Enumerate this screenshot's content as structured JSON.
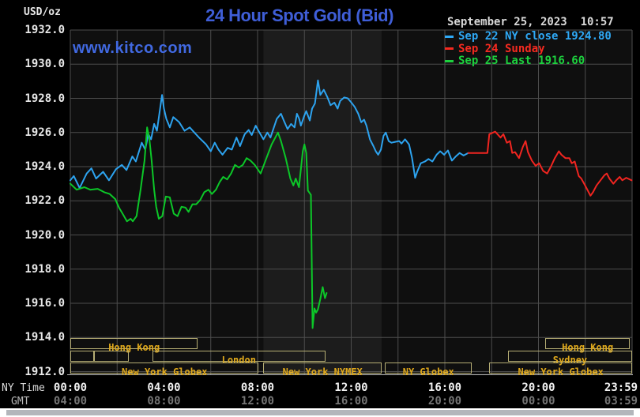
{
  "header": {
    "units": "USD/oz",
    "title": "24 Hour Spot Gold (Bid)",
    "date_time": "September 25, 2023  10:57",
    "watermark": "www.kitco.com"
  },
  "legend": {
    "items": [
      {
        "label": "Sep 22 NY close 1924.80",
        "color": "#2fa9f6"
      },
      {
        "label": "Sep 24 Sunday",
        "color": "#f52a20"
      },
      {
        "label": "Sep 25 Last 1916.60",
        "color": "#1dd13e"
      }
    ]
  },
  "colors": {
    "title_blue": "#3f5ed7",
    "watermark_blue": "#4169e1",
    "grid": "#4d4d4d",
    "plot_bg": "#0f0f0f",
    "nymex_band": "#1c1c1c",
    "session_border": "#b6ae74",
    "session_text": "#e0a91c",
    "axis_bottom_line": "#b9b9b9"
  },
  "y_axis": {
    "labels": [
      "1932.0",
      "1930.0",
      "1928.0",
      "1926.0",
      "1924.0",
      "1922.0",
      "1920.0",
      "1918.0",
      "1916.0",
      "1914.0",
      "1912.0"
    ]
  },
  "x_axis": {
    "ny_caption": "NY Time",
    "gmt_caption": "GMT",
    "tick_hours": [
      0,
      4,
      8,
      12,
      16,
      20,
      24
    ],
    "ny_labels": [
      "00:00",
      "04:00",
      "08:00",
      "12:00",
      "16:00",
      "20:00",
      "23:59"
    ],
    "gmt_labels": [
      "04:00",
      "08:00",
      "12:00",
      "16:00",
      "20:00",
      "00:00",
      "03:59"
    ]
  },
  "sessions": {
    "rows": [
      {
        "boxes": [
          {
            "label": "Hong Kong",
            "start": 0,
            "end": 5.45
          },
          {
            "label": "Hong Kong",
            "start": 20.3,
            "end": 23.9
          }
        ]
      },
      {
        "boxes": [
          {
            "label": "",
            "start": 0,
            "end": 1.0
          },
          {
            "label": "",
            "start": 1.0,
            "end": 2.5
          },
          {
            "label": "London",
            "start": 3.5,
            "end": 10.9
          },
          {
            "label": "Sydney",
            "start": 18.7,
            "end": 24
          }
        ]
      },
      {
        "boxes": [
          {
            "label": "New York Globex",
            "start": 0,
            "end": 8.05
          },
          {
            "label": "New York NYMEX",
            "start": 8.25,
            "end": 13.3
          },
          {
            "label": "NY Globex",
            "start": 13.45,
            "end": 17.15
          },
          {
            "label": "New York Globex",
            "start": 17.9,
            "end": 24
          }
        ]
      }
    ]
  },
  "chart_data": {
    "type": "line",
    "title": "24 Hour Spot Gold (Bid)",
    "xlabel": "NY Time (hours)",
    "ylabel": "USD/oz",
    "xlim": [
      0,
      24
    ],
    "ylim": [
      1912,
      1932
    ],
    "y_tick_step": 2,
    "grid": true,
    "legend_position": "top-right",
    "highlight_band": {
      "start": 8.25,
      "end": 13.3
    },
    "series": [
      {
        "name": "Sep 22 NY close 1924.80",
        "color": "#2da3ef",
        "points": [
          [
            0,
            1923.2
          ],
          [
            0.15,
            1923.45
          ],
          [
            0.4,
            1922.75
          ],
          [
            0.7,
            1923.6
          ],
          [
            0.9,
            1923.9
          ],
          [
            1.1,
            1923.3
          ],
          [
            1.4,
            1923.7
          ],
          [
            1.65,
            1923.2
          ],
          [
            1.95,
            1923.85
          ],
          [
            2.2,
            1924.1
          ],
          [
            2.4,
            1923.8
          ],
          [
            2.65,
            1924.6
          ],
          [
            2.8,
            1924.3
          ],
          [
            3.05,
            1925.4
          ],
          [
            3.2,
            1925.0
          ],
          [
            3.33,
            1925.9
          ],
          [
            3.45,
            1925.6
          ],
          [
            3.58,
            1926.5
          ],
          [
            3.7,
            1926.1
          ],
          [
            3.92,
            1928.2
          ],
          [
            4.0,
            1927.4
          ],
          [
            4.1,
            1926.8
          ],
          [
            4.25,
            1926.3
          ],
          [
            4.4,
            1926.9
          ],
          [
            4.65,
            1926.6
          ],
          [
            4.88,
            1926.1
          ],
          [
            5.1,
            1926.3
          ],
          [
            5.3,
            1926.0
          ],
          [
            5.5,
            1925.7
          ],
          [
            5.8,
            1925.3
          ],
          [
            6.0,
            1924.9
          ],
          [
            6.17,
            1925.4
          ],
          [
            6.33,
            1925.0
          ],
          [
            6.5,
            1924.7
          ],
          [
            6.72,
            1925.1
          ],
          [
            6.9,
            1925.0
          ],
          [
            7.1,
            1925.7
          ],
          [
            7.25,
            1925.2
          ],
          [
            7.45,
            1925.9
          ],
          [
            7.62,
            1926.15
          ],
          [
            7.75,
            1925.85
          ],
          [
            7.92,
            1926.4
          ],
          [
            8.08,
            1926.0
          ],
          [
            8.25,
            1925.6
          ],
          [
            8.42,
            1926.0
          ],
          [
            8.55,
            1925.7
          ],
          [
            8.82,
            1926.8
          ],
          [
            9.0,
            1927.1
          ],
          [
            9.12,
            1926.7
          ],
          [
            9.28,
            1926.2
          ],
          [
            9.43,
            1926.5
          ],
          [
            9.58,
            1926.3
          ],
          [
            9.68,
            1927.1
          ],
          [
            9.78,
            1926.8
          ],
          [
            9.85,
            1926.4
          ],
          [
            10.0,
            1927.0
          ],
          [
            10.08,
            1927.25
          ],
          [
            10.23,
            1926.7
          ],
          [
            10.33,
            1927.4
          ],
          [
            10.45,
            1927.7
          ],
          [
            10.58,
            1929.05
          ],
          [
            10.68,
            1928.2
          ],
          [
            10.83,
            1928.5
          ],
          [
            10.97,
            1928.1
          ],
          [
            11.12,
            1927.6
          ],
          [
            11.28,
            1927.75
          ],
          [
            11.42,
            1927.4
          ],
          [
            11.53,
            1927.85
          ],
          [
            11.7,
            1928.05
          ],
          [
            11.85,
            1928.0
          ],
          [
            11.98,
            1927.8
          ],
          [
            12.15,
            1927.5
          ],
          [
            12.3,
            1927.1
          ],
          [
            12.43,
            1926.6
          ],
          [
            12.55,
            1926.75
          ],
          [
            12.65,
            1926.4
          ],
          [
            12.8,
            1925.6
          ],
          [
            12.95,
            1925.2
          ],
          [
            13.05,
            1924.9
          ],
          [
            13.15,
            1924.7
          ],
          [
            13.27,
            1925.0
          ],
          [
            13.38,
            1925.8
          ],
          [
            13.48,
            1926.0
          ],
          [
            13.6,
            1925.5
          ],
          [
            13.72,
            1925.4
          ],
          [
            13.88,
            1925.45
          ],
          [
            14.05,
            1925.5
          ],
          [
            14.15,
            1925.35
          ],
          [
            14.3,
            1925.6
          ],
          [
            14.47,
            1925.3
          ],
          [
            14.6,
            1924.5
          ],
          [
            14.73,
            1923.35
          ],
          [
            14.82,
            1923.7
          ],
          [
            14.97,
            1924.2
          ],
          [
            15.15,
            1924.3
          ],
          [
            15.3,
            1924.45
          ],
          [
            15.47,
            1924.3
          ],
          [
            15.65,
            1924.7
          ],
          [
            15.8,
            1924.9
          ],
          [
            15.97,
            1924.7
          ],
          [
            16.13,
            1924.95
          ],
          [
            16.3,
            1924.35
          ],
          [
            16.47,
            1924.6
          ],
          [
            16.63,
            1924.8
          ],
          [
            16.8,
            1924.65
          ],
          [
            17.0,
            1924.8
          ]
        ]
      },
      {
        "name": "Sep 24 Sunday",
        "color": "#f12520",
        "points": [
          [
            17.0,
            1924.8
          ],
          [
            17.82,
            1924.8
          ],
          [
            17.9,
            1925.9
          ],
          [
            18.15,
            1926.05
          ],
          [
            18.38,
            1925.7
          ],
          [
            18.5,
            1925.9
          ],
          [
            18.65,
            1925.4
          ],
          [
            18.78,
            1925.5
          ],
          [
            18.88,
            1924.8
          ],
          [
            19.0,
            1924.85
          ],
          [
            19.17,
            1924.5
          ],
          [
            19.33,
            1925.15
          ],
          [
            19.45,
            1925.5
          ],
          [
            19.55,
            1924.85
          ],
          [
            19.72,
            1924.35
          ],
          [
            19.88,
            1924.05
          ],
          [
            20.03,
            1924.2
          ],
          [
            20.2,
            1923.75
          ],
          [
            20.37,
            1923.6
          ],
          [
            20.53,
            1924.0
          ],
          [
            20.7,
            1924.5
          ],
          [
            20.87,
            1924.9
          ],
          [
            20.98,
            1924.7
          ],
          [
            21.15,
            1924.5
          ],
          [
            21.32,
            1924.5
          ],
          [
            21.42,
            1924.2
          ],
          [
            21.55,
            1924.3
          ],
          [
            21.72,
            1923.45
          ],
          [
            21.83,
            1923.3
          ],
          [
            21.93,
            1923.05
          ],
          [
            22.05,
            1922.75
          ],
          [
            22.22,
            1922.3
          ],
          [
            22.33,
            1922.5
          ],
          [
            22.48,
            1922.9
          ],
          [
            22.65,
            1923.2
          ],
          [
            22.82,
            1923.5
          ],
          [
            22.92,
            1923.6
          ],
          [
            23.03,
            1923.3
          ],
          [
            23.2,
            1923.0
          ],
          [
            23.32,
            1923.2
          ],
          [
            23.47,
            1923.4
          ],
          [
            23.58,
            1923.2
          ],
          [
            23.75,
            1923.35
          ],
          [
            23.98,
            1923.2
          ]
        ]
      },
      {
        "name": "Sep 25 Last 1916.60",
        "color": "#0cc728",
        "points": [
          [
            0,
            1923.0
          ],
          [
            0.27,
            1922.65
          ],
          [
            0.6,
            1922.8
          ],
          [
            0.85,
            1922.65
          ],
          [
            1.17,
            1922.7
          ],
          [
            1.45,
            1922.5
          ],
          [
            1.68,
            1922.4
          ],
          [
            1.92,
            1922.1
          ],
          [
            2.08,
            1921.6
          ],
          [
            2.25,
            1921.2
          ],
          [
            2.42,
            1920.8
          ],
          [
            2.58,
            1920.95
          ],
          [
            2.67,
            1920.8
          ],
          [
            2.83,
            1921.1
          ],
          [
            3.0,
            1922.65
          ],
          [
            3.17,
            1924.35
          ],
          [
            3.28,
            1926.3
          ],
          [
            3.38,
            1925.6
          ],
          [
            3.47,
            1924.4
          ],
          [
            3.58,
            1922.65
          ],
          [
            3.67,
            1921.65
          ],
          [
            3.78,
            1920.95
          ],
          [
            3.93,
            1921.1
          ],
          [
            4.08,
            1922.25
          ],
          [
            4.25,
            1922.2
          ],
          [
            4.42,
            1921.25
          ],
          [
            4.58,
            1921.1
          ],
          [
            4.75,
            1921.65
          ],
          [
            4.92,
            1921.6
          ],
          [
            5.05,
            1921.35
          ],
          [
            5.22,
            1921.8
          ],
          [
            5.38,
            1921.8
          ],
          [
            5.55,
            1922.05
          ],
          [
            5.72,
            1922.5
          ],
          [
            5.9,
            1922.65
          ],
          [
            6.05,
            1922.4
          ],
          [
            6.22,
            1922.65
          ],
          [
            6.38,
            1923.1
          ],
          [
            6.53,
            1923.4
          ],
          [
            6.7,
            1923.25
          ],
          [
            6.87,
            1923.6
          ],
          [
            7.03,
            1924.1
          ],
          [
            7.2,
            1923.95
          ],
          [
            7.37,
            1924.1
          ],
          [
            7.53,
            1924.5
          ],
          [
            7.7,
            1924.35
          ],
          [
            7.88,
            1924.1
          ],
          [
            8.13,
            1923.6
          ],
          [
            8.35,
            1924.4
          ],
          [
            8.6,
            1925.3
          ],
          [
            8.87,
            1926.0
          ],
          [
            9.0,
            1925.5
          ],
          [
            9.2,
            1924.5
          ],
          [
            9.4,
            1923.3
          ],
          [
            9.53,
            1922.9
          ],
          [
            9.63,
            1923.3
          ],
          [
            9.77,
            1922.8
          ],
          [
            9.93,
            1924.9
          ],
          [
            10.0,
            1925.3
          ],
          [
            10.08,
            1924.8
          ],
          [
            10.15,
            1922.6
          ],
          [
            10.28,
            1922.35
          ],
          [
            10.35,
            1914.55
          ],
          [
            10.43,
            1915.7
          ],
          [
            10.5,
            1915.45
          ],
          [
            10.58,
            1915.65
          ],
          [
            10.68,
            1916.25
          ],
          [
            10.78,
            1916.95
          ],
          [
            10.88,
            1916.3
          ],
          [
            10.95,
            1916.6
          ]
        ]
      }
    ]
  }
}
